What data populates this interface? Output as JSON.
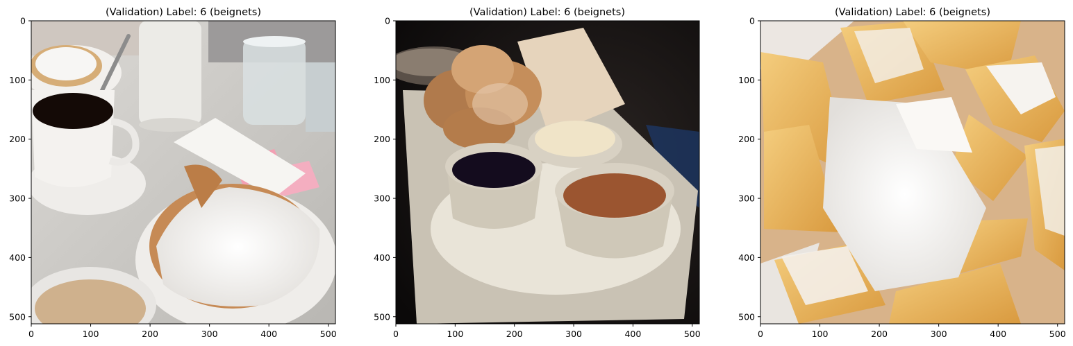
{
  "chart_data": [
    {
      "type": "image",
      "title": "(Validation) Label: 6 (beignets)",
      "xlim": [
        0,
        512
      ],
      "ylim": [
        512,
        0
      ],
      "xticks": [
        0,
        100,
        200,
        300,
        400,
        500
      ],
      "yticks": [
        0,
        100,
        200,
        300,
        400,
        500
      ],
      "image_content": "cafe table with beignets covered in powdered sugar, cup of black coffee, cafe au lait, glass of water, sugar shaker, pink sweetener packets"
    },
    {
      "type": "image",
      "title": "(Validation) Label: 6 (beignets)",
      "xlim": [
        0,
        512
      ],
      "ylim": [
        512,
        0
      ],
      "xticks": [
        0,
        100,
        200,
        300,
        400,
        500
      ],
      "yticks": [
        0,
        100,
        200,
        300,
        400,
        500
      ],
      "image_content": "dark restaurant plate with sugared beignets in a paper bag and three dipping sauce ramekins (dark berry, cream, caramel) on a white doily"
    },
    {
      "type": "image",
      "title": "(Validation) Label: 6 (beignets)",
      "xlim": [
        0,
        512
      ],
      "ylim": [
        512,
        0
      ],
      "xticks": [
        0,
        100,
        200,
        300,
        400,
        500
      ],
      "yticks": [
        0,
        100,
        200,
        300,
        400,
        500
      ],
      "image_content": "close-up of golden square beignets dusted with powdered sugar in wax paper"
    }
  ],
  "colors": {
    "powdered_sugar": "#f4f3f1",
    "coffee": "#140a06",
    "beignet_gold": "#e9b35c",
    "table_marble": "#cbc9c4",
    "dark_background": "#141010"
  }
}
